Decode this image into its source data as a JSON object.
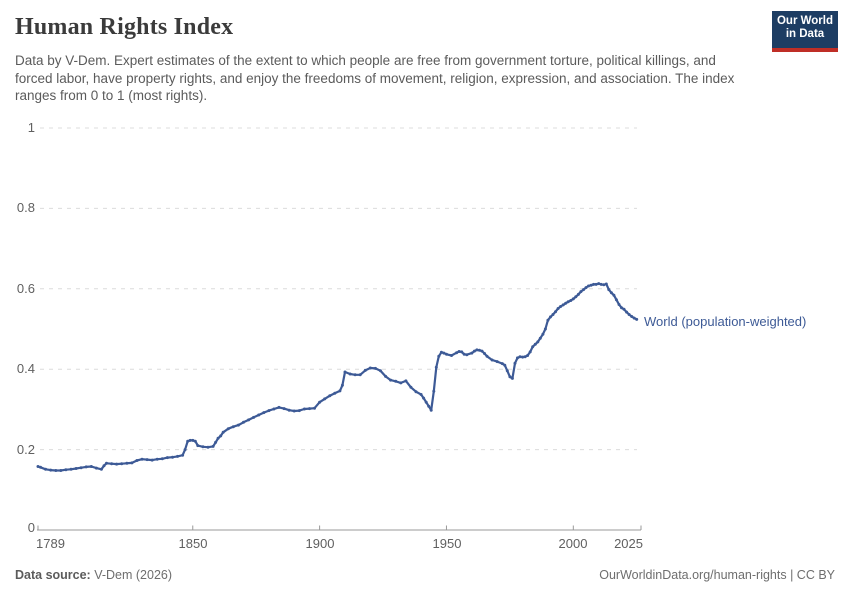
{
  "header": {
    "title": "Human Rights Index",
    "subtitle": "Data by V-Dem. Expert estimates of the extent to which people are free from government torture, political killings, and forced labor, have property rights, and enjoy the freedoms of movement, religion, expression, and association. The index ranges from 0 to 1 (most rights).",
    "logo": {
      "line1": "Our World",
      "line2": "in Data"
    }
  },
  "footer": {
    "source_label": "Data source:",
    "source_value": " V-Dem (2026)",
    "link": "OurWorldinData.org/human-rights | CC BY"
  },
  "colors": {
    "line": "#3d5a96",
    "grid": "#dcdcdc",
    "axis": "#999999",
    "logo_navy": "#1d3d63",
    "logo_red": "#bf2e26"
  },
  "chart_data": {
    "type": "line",
    "title": "Human Rights Index",
    "xlabel": "",
    "ylabel": "",
    "xlim": [
      1789,
      2027
    ],
    "ylim": [
      0,
      1
    ],
    "grid": "horizontal-dashed",
    "legend_position": "end-of-line",
    "x_tick_labels": [
      "1789",
      "1850",
      "1900",
      "1950",
      "2000",
      "2025"
    ],
    "x_tick_years": [
      1789,
      1850,
      1900,
      1950,
      2000,
      2025
    ],
    "y_tick_labels": [
      "1",
      "0.8",
      "0.6",
      "0.4",
      "0.2",
      "0"
    ],
    "y_tick_values": [
      1,
      0.8,
      0.6,
      0.4,
      0.2,
      0
    ],
    "series": [
      {
        "name": "World (population-weighted)",
        "color": "#3d5a96",
        "points": [
          [
            1789,
            0.158
          ],
          [
            1790,
            0.156
          ],
          [
            1792,
            0.151
          ],
          [
            1794,
            0.149
          ],
          [
            1796,
            0.148
          ],
          [
            1798,
            0.148
          ],
          [
            1800,
            0.15
          ],
          [
            1802,
            0.151
          ],
          [
            1804,
            0.153
          ],
          [
            1806,
            0.155
          ],
          [
            1808,
            0.157
          ],
          [
            1810,
            0.158
          ],
          [
            1812,
            0.154
          ],
          [
            1814,
            0.151
          ],
          [
            1815,
            0.16
          ],
          [
            1816,
            0.166
          ],
          [
            1818,
            0.165
          ],
          [
            1820,
            0.164
          ],
          [
            1822,
            0.165
          ],
          [
            1824,
            0.166
          ],
          [
            1826,
            0.167
          ],
          [
            1828,
            0.173
          ],
          [
            1830,
            0.176
          ],
          [
            1832,
            0.175
          ],
          [
            1834,
            0.174
          ],
          [
            1836,
            0.176
          ],
          [
            1838,
            0.177
          ],
          [
            1840,
            0.18
          ],
          [
            1842,
            0.181
          ],
          [
            1844,
            0.183
          ],
          [
            1846,
            0.186
          ],
          [
            1847,
            0.2
          ],
          [
            1848,
            0.221
          ],
          [
            1849,
            0.223
          ],
          [
            1850,
            0.223
          ],
          [
            1851,
            0.221
          ],
          [
            1852,
            0.21
          ],
          [
            1854,
            0.207
          ],
          [
            1856,
            0.206
          ],
          [
            1858,
            0.208
          ],
          [
            1859,
            0.218
          ],
          [
            1860,
            0.228
          ],
          [
            1861,
            0.234
          ],
          [
            1862,
            0.243
          ],
          [
            1864,
            0.252
          ],
          [
            1866,
            0.257
          ],
          [
            1868,
            0.261
          ],
          [
            1870,
            0.268
          ],
          [
            1872,
            0.274
          ],
          [
            1874,
            0.28
          ],
          [
            1876,
            0.286
          ],
          [
            1878,
            0.292
          ],
          [
            1880,
            0.297
          ],
          [
            1882,
            0.301
          ],
          [
            1884,
            0.305
          ],
          [
            1886,
            0.302
          ],
          [
            1888,
            0.298
          ],
          [
            1890,
            0.296
          ],
          [
            1892,
            0.297
          ],
          [
            1894,
            0.301
          ],
          [
            1896,
            0.302
          ],
          [
            1898,
            0.303
          ],
          [
            1900,
            0.318
          ],
          [
            1902,
            0.326
          ],
          [
            1904,
            0.334
          ],
          [
            1906,
            0.34
          ],
          [
            1908,
            0.346
          ],
          [
            1909,
            0.36
          ],
          [
            1910,
            0.393
          ],
          [
            1912,
            0.388
          ],
          [
            1914,
            0.386
          ],
          [
            1916,
            0.386
          ],
          [
            1918,
            0.397
          ],
          [
            1920,
            0.403
          ],
          [
            1922,
            0.402
          ],
          [
            1924,
            0.396
          ],
          [
            1926,
            0.382
          ],
          [
            1928,
            0.373
          ],
          [
            1930,
            0.37
          ],
          [
            1932,
            0.366
          ],
          [
            1934,
            0.371
          ],
          [
            1936,
            0.355
          ],
          [
            1938,
            0.344
          ],
          [
            1940,
            0.337
          ],
          [
            1941,
            0.328
          ],
          [
            1942,
            0.318
          ],
          [
            1943,
            0.308
          ],
          [
            1944,
            0.298
          ],
          [
            1945,
            0.345
          ],
          [
            1946,
            0.405
          ],
          [
            1947,
            0.432
          ],
          [
            1948,
            0.442
          ],
          [
            1949,
            0.44
          ],
          [
            1950,
            0.437
          ],
          [
            1952,
            0.434
          ],
          [
            1954,
            0.441
          ],
          [
            1955,
            0.444
          ],
          [
            1956,
            0.443
          ],
          [
            1957,
            0.437
          ],
          [
            1958,
            0.436
          ],
          [
            1960,
            0.44
          ],
          [
            1961,
            0.445
          ],
          [
            1962,
            0.448
          ],
          [
            1963,
            0.447
          ],
          [
            1964,
            0.445
          ],
          [
            1965,
            0.439
          ],
          [
            1966,
            0.432
          ],
          [
            1968,
            0.423
          ],
          [
            1970,
            0.419
          ],
          [
            1972,
            0.414
          ],
          [
            1973,
            0.41
          ],
          [
            1974,
            0.396
          ],
          [
            1975,
            0.381
          ],
          [
            1976,
            0.377
          ],
          [
            1977,
            0.415
          ],
          [
            1978,
            0.428
          ],
          [
            1979,
            0.431
          ],
          [
            1980,
            0.43
          ],
          [
            1981,
            0.431
          ],
          [
            1982,
            0.434
          ],
          [
            1983,
            0.443
          ],
          [
            1984,
            0.456
          ],
          [
            1985,
            0.462
          ],
          [
            1986,
            0.468
          ],
          [
            1987,
            0.477
          ],
          [
            1988,
            0.487
          ],
          [
            1989,
            0.5
          ],
          [
            1990,
            0.522
          ],
          [
            1991,
            0.53
          ],
          [
            1992,
            0.536
          ],
          [
            1993,
            0.543
          ],
          [
            1994,
            0.551
          ],
          [
            1995,
            0.556
          ],
          [
            1996,
            0.56
          ],
          [
            1997,
            0.564
          ],
          [
            1998,
            0.568
          ],
          [
            1999,
            0.571
          ],
          [
            2000,
            0.575
          ],
          [
            2001,
            0.58
          ],
          [
            2002,
            0.586
          ],
          [
            2003,
            0.593
          ],
          [
            2004,
            0.598
          ],
          [
            2005,
            0.603
          ],
          [
            2006,
            0.607
          ],
          [
            2007,
            0.609
          ],
          [
            2008,
            0.611
          ],
          [
            2009,
            0.611
          ],
          [
            2010,
            0.613
          ],
          [
            2011,
            0.611
          ],
          [
            2012,
            0.61
          ],
          [
            2013,
            0.612
          ],
          [
            2014,
            0.598
          ],
          [
            2015,
            0.59
          ],
          [
            2016,
            0.584
          ],
          [
            2017,
            0.573
          ],
          [
            2018,
            0.561
          ],
          [
            2019,
            0.553
          ],
          [
            2020,
            0.549
          ],
          [
            2021,
            0.542
          ],
          [
            2022,
            0.536
          ],
          [
            2023,
            0.531
          ],
          [
            2024,
            0.527
          ],
          [
            2025,
            0.524
          ]
        ]
      }
    ]
  }
}
